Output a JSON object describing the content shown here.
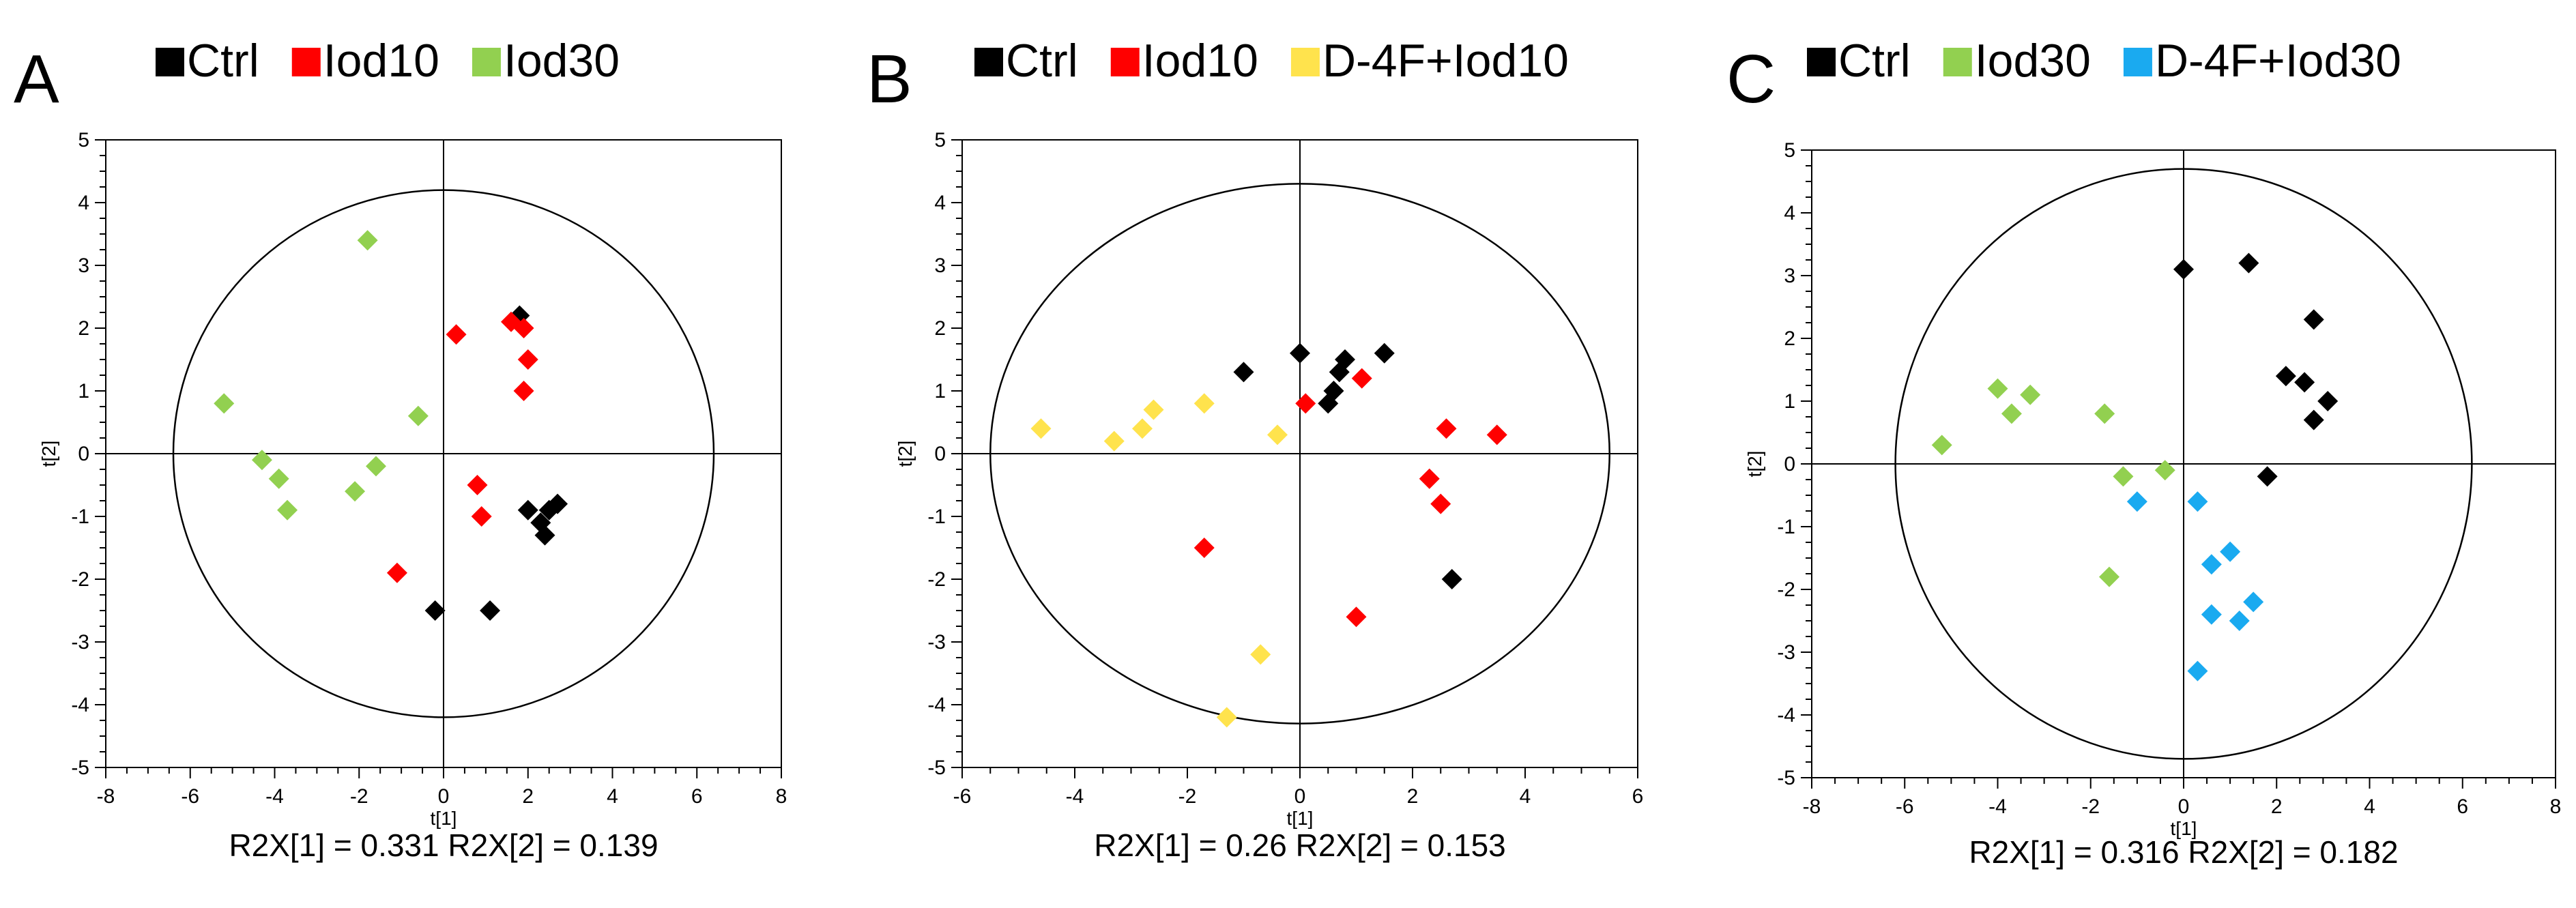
{
  "figure": {
    "description_type": "PCA score plots (three panels)"
  },
  "colors": {
    "Ctrl": "#000000",
    "Iod10": "#ff0000",
    "Iod30": "#92d050",
    "D-4F+Iod10": "#ffe34d",
    "D-4F+Iod30": "#1aaaf0",
    "axis": "#000000"
  },
  "chart_data": [
    {
      "panel_label": "A",
      "type": "scatter",
      "xlabel": "t[1]",
      "ylabel": "t[2]",
      "xlim": [
        -8,
        8
      ],
      "ylim": [
        -5,
        5
      ],
      "xticks": [
        -8,
        -6,
        -4,
        -2,
        0,
        2,
        4,
        6,
        8
      ],
      "yticks": [
        -5,
        -4,
        -3,
        -2,
        -1,
        0,
        1,
        2,
        3,
        4,
        5
      ],
      "ellipse": {
        "rx": 6.4,
        "ry": 4.2
      },
      "legend": [
        "Ctrl",
        "Iod10",
        "Iod30"
      ],
      "footer": "R2X[1] = 0.331  R2X[2] = 0.139",
      "series": [
        {
          "name": "Ctrl",
          "points": [
            [
              1.8,
              2.2
            ],
            [
              2.0,
              -0.9
            ],
            [
              2.3,
              -1.1
            ],
            [
              2.5,
              -0.9
            ],
            [
              2.7,
              -0.8
            ],
            [
              2.4,
              -1.3
            ],
            [
              -0.2,
              -2.5
            ],
            [
              1.1,
              -2.5
            ]
          ]
        },
        {
          "name": "Iod10",
          "points": [
            [
              0.3,
              1.9
            ],
            [
              1.6,
              2.1
            ],
            [
              1.9,
              2.0
            ],
            [
              2.0,
              1.5
            ],
            [
              1.9,
              1.0
            ],
            [
              0.8,
              -0.5
            ],
            [
              0.9,
              -1.0
            ],
            [
              -1.1,
              -1.9
            ]
          ]
        },
        {
          "name": "Iod30",
          "points": [
            [
              -1.8,
              3.4
            ],
            [
              -5.2,
              0.8
            ],
            [
              -4.3,
              -0.1
            ],
            [
              -3.9,
              -0.4
            ],
            [
              -3.7,
              -0.9
            ],
            [
              -2.1,
              -0.6
            ],
            [
              -1.6,
              -0.2
            ],
            [
              -0.6,
              0.6
            ]
          ]
        }
      ]
    },
    {
      "panel_label": "B",
      "type": "scatter",
      "xlabel": "t[1]",
      "ylabel": "t[2]",
      "xlim": [
        -6,
        6
      ],
      "ylim": [
        -5,
        5
      ],
      "xticks": [
        -6,
        -4,
        -2,
        0,
        2,
        4,
        6
      ],
      "yticks": [
        -5,
        -4,
        -3,
        -2,
        -1,
        0,
        1,
        2,
        3,
        4,
        5
      ],
      "ellipse": {
        "rx": 5.5,
        "ry": 4.3
      },
      "legend": [
        "Ctrl",
        "Iod10",
        "D-4F+Iod10"
      ],
      "footer": "R2X[1] = 0.26  R2X[2] = 0.153",
      "series": [
        {
          "name": "Ctrl",
          "points": [
            [
              -1.0,
              1.3
            ],
            [
              0.0,
              1.6
            ],
            [
              0.5,
              0.8
            ],
            [
              0.6,
              1.0
            ],
            [
              0.7,
              1.3
            ],
            [
              0.8,
              1.5
            ],
            [
              1.5,
              1.6
            ],
            [
              2.7,
              -2.0
            ]
          ]
        },
        {
          "name": "Iod10",
          "points": [
            [
              0.1,
              0.8
            ],
            [
              1.1,
              1.2
            ],
            [
              2.6,
              0.4
            ],
            [
              3.5,
              0.3
            ],
            [
              2.3,
              -0.4
            ],
            [
              2.5,
              -0.8
            ],
            [
              -1.7,
              -1.5
            ],
            [
              1.0,
              -2.6
            ]
          ]
        },
        {
          "name": "D-4F+Iod10",
          "points": [
            [
              -4.6,
              0.4
            ],
            [
              -3.3,
              0.2
            ],
            [
              -2.8,
              0.4
            ],
            [
              -2.6,
              0.7
            ],
            [
              -1.7,
              0.8
            ],
            [
              -0.4,
              0.3
            ],
            [
              -0.7,
              -3.2
            ],
            [
              -1.3,
              -4.2
            ]
          ]
        }
      ]
    },
    {
      "panel_label": "C",
      "type": "scatter",
      "xlabel": "t[1]",
      "ylabel": "t[2]",
      "xlim": [
        -8,
        8
      ],
      "ylim": [
        -5,
        5
      ],
      "xticks": [
        -8,
        -6,
        -4,
        -2,
        0,
        2,
        4,
        6,
        8
      ],
      "yticks": [
        -5,
        -4,
        -3,
        -2,
        -1,
        0,
        1,
        2,
        3,
        4,
        5
      ],
      "ellipse": {
        "rx": 6.2,
        "ry": 4.7
      },
      "legend": [
        "Ctrl",
        "Iod30",
        "D-4F+Iod30"
      ],
      "footer": "R2X[1] = 0.316  R2X[2] = 0.182",
      "series": [
        {
          "name": "Ctrl",
          "points": [
            [
              0.0,
              3.1
            ],
            [
              1.4,
              3.2
            ],
            [
              2.8,
              2.3
            ],
            [
              2.2,
              1.4
            ],
            [
              2.6,
              1.3
            ],
            [
              3.1,
              1.0
            ],
            [
              2.8,
              0.7
            ],
            [
              1.8,
              -0.2
            ]
          ]
        },
        {
          "name": "Iod30",
          "points": [
            [
              -4.0,
              1.2
            ],
            [
              -3.3,
              1.1
            ],
            [
              -3.7,
              0.8
            ],
            [
              -1.7,
              0.8
            ],
            [
              -5.2,
              0.3
            ],
            [
              -1.3,
              -0.2
            ],
            [
              -0.4,
              -0.1
            ],
            [
              -1.6,
              -1.8
            ]
          ]
        },
        {
          "name": "D-4F+Iod30",
          "points": [
            [
              -1.0,
              -0.6
            ],
            [
              0.3,
              -0.6
            ],
            [
              1.0,
              -1.4
            ],
            [
              0.6,
              -1.6
            ],
            [
              0.6,
              -2.4
            ],
            [
              1.5,
              -2.2
            ],
            [
              1.2,
              -2.5
            ],
            [
              0.3,
              -3.3
            ]
          ]
        }
      ]
    }
  ]
}
